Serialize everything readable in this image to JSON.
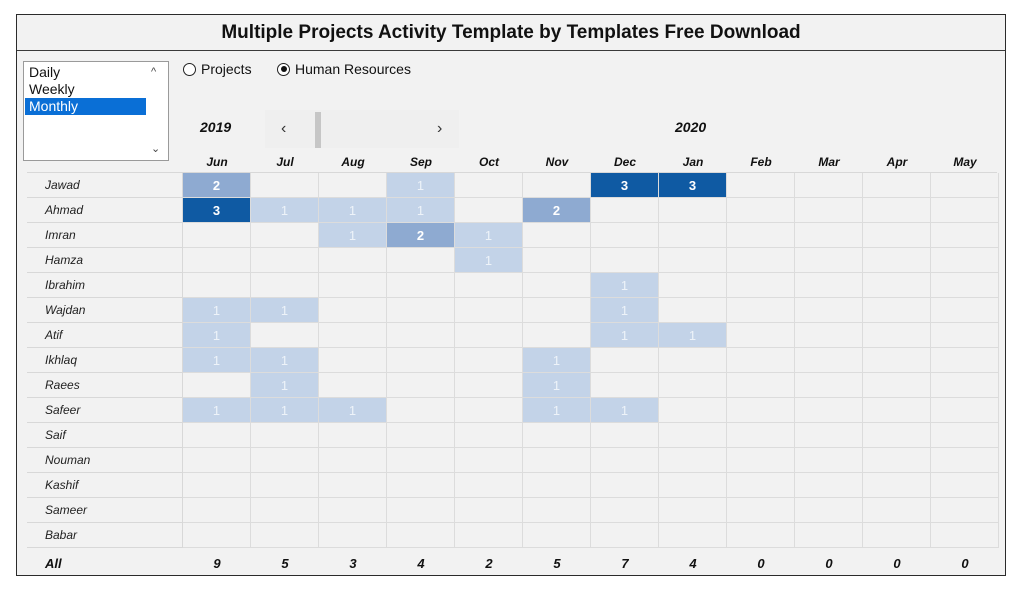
{
  "title": "Multiple Projects Activity Template by Templates Free Download",
  "period_list": {
    "options": [
      "Daily",
      "Weekly",
      "Monthly"
    ],
    "selected": "Monthly"
  },
  "radios": [
    {
      "label": "Projects",
      "checked": false
    },
    {
      "label": "Human Resources",
      "checked": true
    }
  ],
  "years": [
    "2019",
    "2020"
  ],
  "nav": {
    "prev": "‹",
    "next": "›"
  },
  "months": [
    "Jun",
    "Jul",
    "Aug",
    "Sep",
    "Oct",
    "Nov",
    "Dec",
    "Jan",
    "Feb",
    "Mar",
    "Apr",
    "May"
  ],
  "rows": [
    {
      "name": "Jawad",
      "values": [
        2,
        0,
        0,
        1,
        0,
        0,
        3,
        3,
        0,
        0,
        0,
        0
      ]
    },
    {
      "name": "Ahmad",
      "values": [
        3,
        1,
        1,
        1,
        0,
        2,
        0,
        0,
        0,
        0,
        0,
        0
      ]
    },
    {
      "name": "Imran",
      "values": [
        0,
        0,
        1,
        2,
        1,
        0,
        0,
        0,
        0,
        0,
        0,
        0
      ]
    },
    {
      "name": "Hamza",
      "values": [
        0,
        0,
        0,
        0,
        1,
        0,
        0,
        0,
        0,
        0,
        0,
        0
      ]
    },
    {
      "name": "Ibrahim",
      "values": [
        0,
        0,
        0,
        0,
        0,
        0,
        1,
        0,
        0,
        0,
        0,
        0
      ]
    },
    {
      "name": "Wajdan",
      "values": [
        1,
        1,
        0,
        0,
        0,
        0,
        1,
        0,
        0,
        0,
        0,
        0
      ]
    },
    {
      "name": "Atif",
      "values": [
        1,
        0,
        0,
        0,
        0,
        0,
        1,
        1,
        0,
        0,
        0,
        0
      ]
    },
    {
      "name": "Ikhlaq",
      "values": [
        1,
        1,
        0,
        0,
        0,
        1,
        0,
        0,
        0,
        0,
        0,
        0
      ]
    },
    {
      "name": "Raees",
      "values": [
        0,
        1,
        0,
        0,
        0,
        1,
        0,
        0,
        0,
        0,
        0,
        0
      ]
    },
    {
      "name": "Safeer",
      "values": [
        1,
        1,
        1,
        0,
        0,
        1,
        1,
        0,
        0,
        0,
        0,
        0
      ]
    },
    {
      "name": "Saif",
      "values": [
        0,
        0,
        0,
        0,
        0,
        0,
        0,
        0,
        0,
        0,
        0,
        0
      ]
    },
    {
      "name": "Nouman",
      "values": [
        0,
        0,
        0,
        0,
        0,
        0,
        0,
        0,
        0,
        0,
        0,
        0
      ]
    },
    {
      "name": "Kashif",
      "values": [
        0,
        0,
        0,
        0,
        0,
        0,
        0,
        0,
        0,
        0,
        0,
        0
      ]
    },
    {
      "name": "Sameer",
      "values": [
        0,
        0,
        0,
        0,
        0,
        0,
        0,
        0,
        0,
        0,
        0,
        0
      ]
    },
    {
      "name": "Babar",
      "values": [
        0,
        0,
        0,
        0,
        0,
        0,
        0,
        0,
        0,
        0,
        0,
        0
      ]
    }
  ],
  "totals": {
    "label": "All",
    "values": [
      "9",
      "5",
      "3",
      "4",
      "2",
      "5",
      "7",
      "4",
      "0",
      "0",
      "0",
      "0"
    ]
  },
  "colors": {
    "level1": "#c3d3e8",
    "level2": "#8eaad1",
    "level3": "#0f5aa3",
    "selection": "#0a6fd6"
  }
}
